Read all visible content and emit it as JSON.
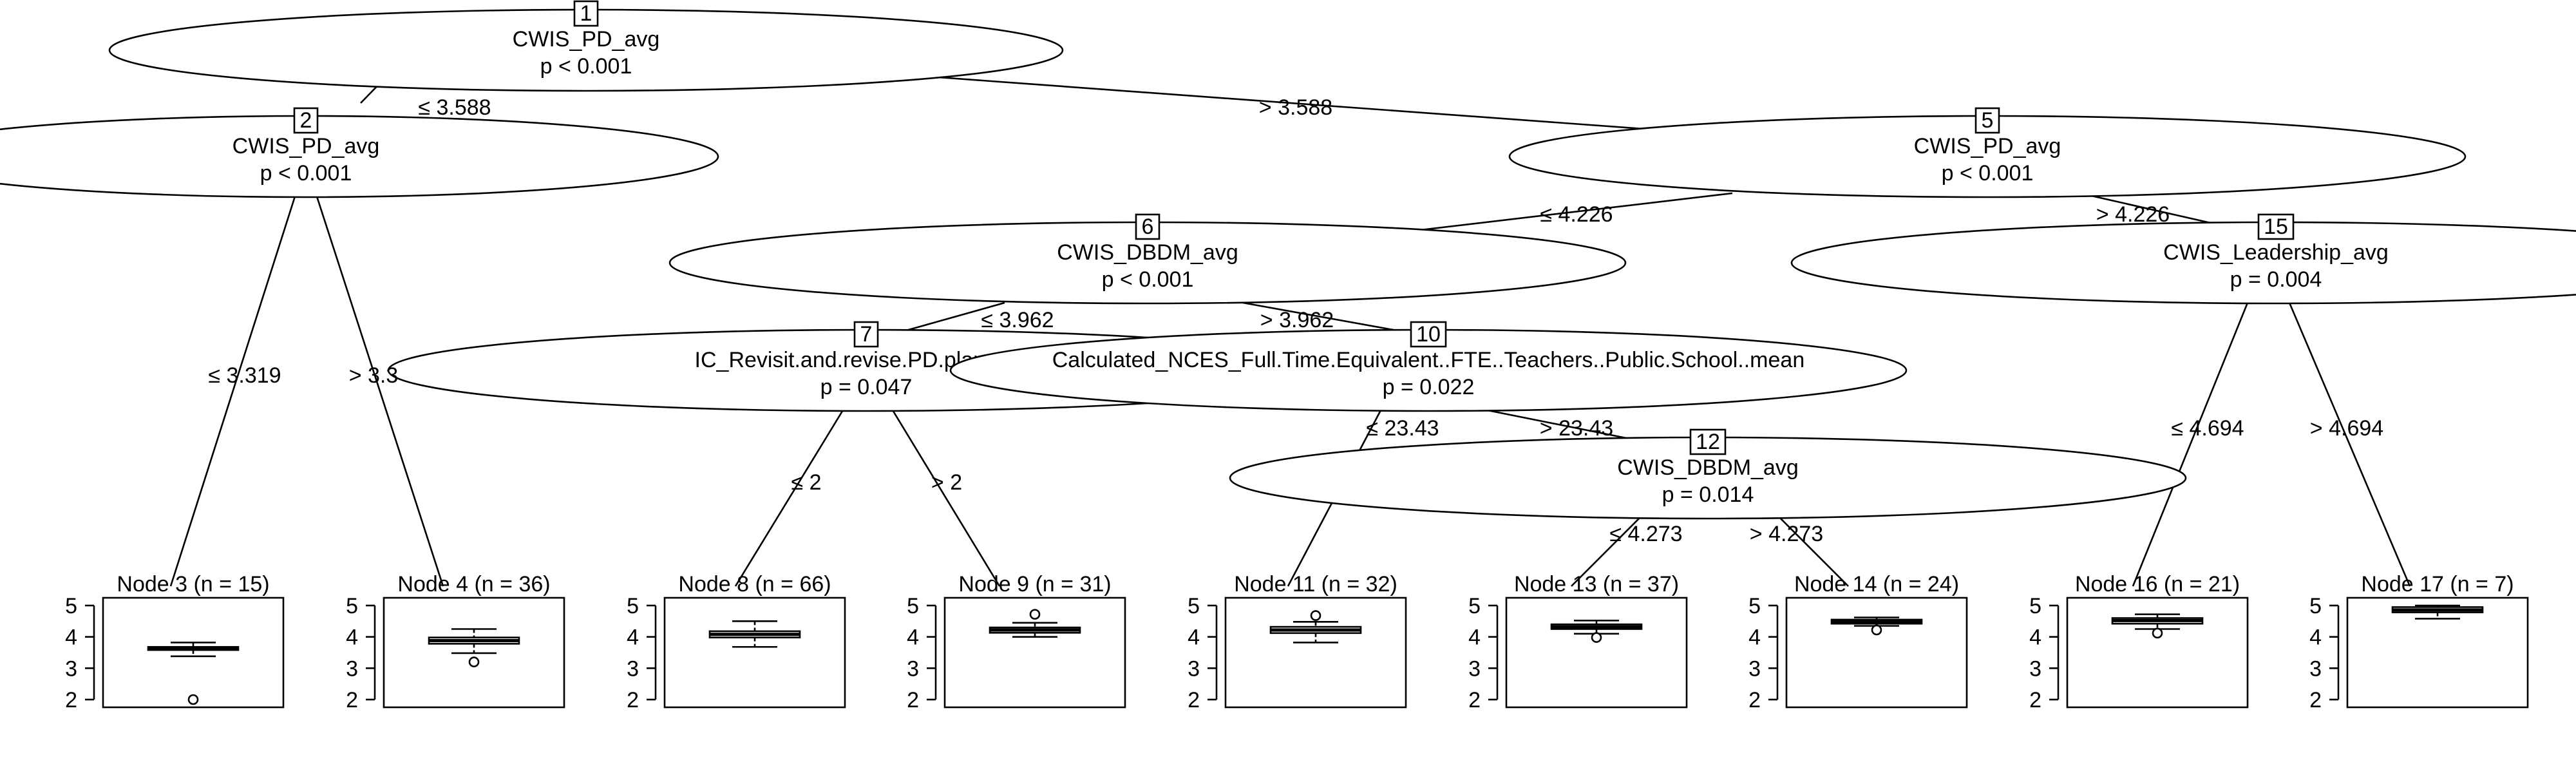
{
  "inner_nodes": [
    {
      "id": "1",
      "variable": "CWIS_PD_avg",
      "p": "p < 0.001"
    },
    {
      "id": "2",
      "variable": "CWIS_PD_avg",
      "p": "p < 0.001"
    },
    {
      "id": "5",
      "variable": "CWIS_PD_avg",
      "p": "p < 0.001"
    },
    {
      "id": "6",
      "variable": "CWIS_DBDM_avg",
      "p": "p < 0.001"
    },
    {
      "id": "7",
      "variable": "IC_Revisit.and.revise.PD.plans.bas",
      "p": "p = 0.047"
    },
    {
      "id": "10",
      "variable": "Calculated_NCES_Full.Time.Equivalent..FTE..Teachers..Public.School..mean",
      "p": "p = 0.022"
    },
    {
      "id": "12",
      "variable": "CWIS_DBDM_avg",
      "p": "p = 0.014"
    },
    {
      "id": "15",
      "variable": "CWIS_Leadership_avg",
      "p": "p = 0.004"
    }
  ],
  "edges": [
    {
      "from": "1",
      "to": "2",
      "label": "≤ 3.588"
    },
    {
      "from": "1",
      "to": "5",
      "label": "> 3.588"
    },
    {
      "from": "2",
      "to": "3",
      "label": "≤ 3.319"
    },
    {
      "from": "2",
      "to": "4",
      "label": "> 3.3"
    },
    {
      "from": "5",
      "to": "6",
      "label": "≤ 4.226"
    },
    {
      "from": "5",
      "to": "15",
      "label": "> 4.226"
    },
    {
      "from": "6",
      "to": "7",
      "label": "≤ 3.962"
    },
    {
      "from": "6",
      "to": "10",
      "label": "> 3.962"
    },
    {
      "from": "7",
      "to": "8",
      "label": "≤ 2"
    },
    {
      "from": "7",
      "to": "9",
      "label": "> 2"
    },
    {
      "from": "10",
      "to": "11",
      "label": "≤ 23.43"
    },
    {
      "from": "10",
      "to": "12",
      "label": "> 23.43"
    },
    {
      "from": "12",
      "to": "13",
      "label": "≤ 4.273"
    },
    {
      "from": "12",
      "to": "14",
      "label": "> 4.273"
    },
    {
      "from": "15",
      "to": "16",
      "label": "≤ 4.694"
    },
    {
      "from": "15",
      "to": "17",
      "label": "> 4.694"
    }
  ],
  "chart_data": {
    "type": "boxplot",
    "ylim": [
      2,
      5
    ],
    "yticks": [
      "5",
      "4",
      "3",
      "2"
    ],
    "terminal_nodes": [
      {
        "id": "3",
        "title": "Node 3 (n = 15)",
        "q1": 3.58,
        "median": 3.63,
        "q3": 3.68,
        "whisker_low": 3.38,
        "whisker_high": 3.82,
        "outliers": [
          2.0
        ]
      },
      {
        "id": "4",
        "title": "Node 4 (n = 36)",
        "q1": 3.78,
        "median": 3.88,
        "q3": 3.98,
        "whisker_low": 3.48,
        "whisker_high": 4.25,
        "outliers": [
          3.2
        ]
      },
      {
        "id": "8",
        "title": "Node 8 (n = 66)",
        "q1": 3.98,
        "median": 4.08,
        "q3": 4.18,
        "whisker_low": 3.68,
        "whisker_high": 4.5,
        "outliers": []
      },
      {
        "id": "9",
        "title": "Node 9 (n = 31)",
        "q1": 4.13,
        "median": 4.22,
        "q3": 4.3,
        "whisker_low": 4.0,
        "whisker_high": 4.45,
        "outliers": [
          4.72
        ]
      },
      {
        "id": "11",
        "title": "Node 11 (n = 32)",
        "q1": 4.12,
        "median": 4.22,
        "q3": 4.32,
        "whisker_low": 3.82,
        "whisker_high": 4.48,
        "outliers": [
          4.68
        ]
      },
      {
        "id": "13",
        "title": "Node 13 (n = 37)",
        "q1": 4.25,
        "median": 4.32,
        "q3": 4.4,
        "whisker_low": 4.1,
        "whisker_high": 4.52,
        "outliers": [
          3.98
        ]
      },
      {
        "id": "14",
        "title": "Node 14 (n = 24)",
        "q1": 4.42,
        "median": 4.48,
        "q3": 4.55,
        "whisker_low": 4.35,
        "whisker_high": 4.62,
        "outliers": [
          4.22
        ]
      },
      {
        "id": "16",
        "title": "Node 16 (n = 21)",
        "q1": 4.42,
        "median": 4.52,
        "q3": 4.6,
        "whisker_low": 4.25,
        "whisker_high": 4.72,
        "outliers": [
          4.12
        ]
      },
      {
        "id": "17",
        "title": "Node 17 (n = 7)",
        "q1": 4.78,
        "median": 4.86,
        "q3": 4.95,
        "whisker_low": 4.58,
        "whisker_high": 5.0,
        "outliers": []
      }
    ]
  }
}
